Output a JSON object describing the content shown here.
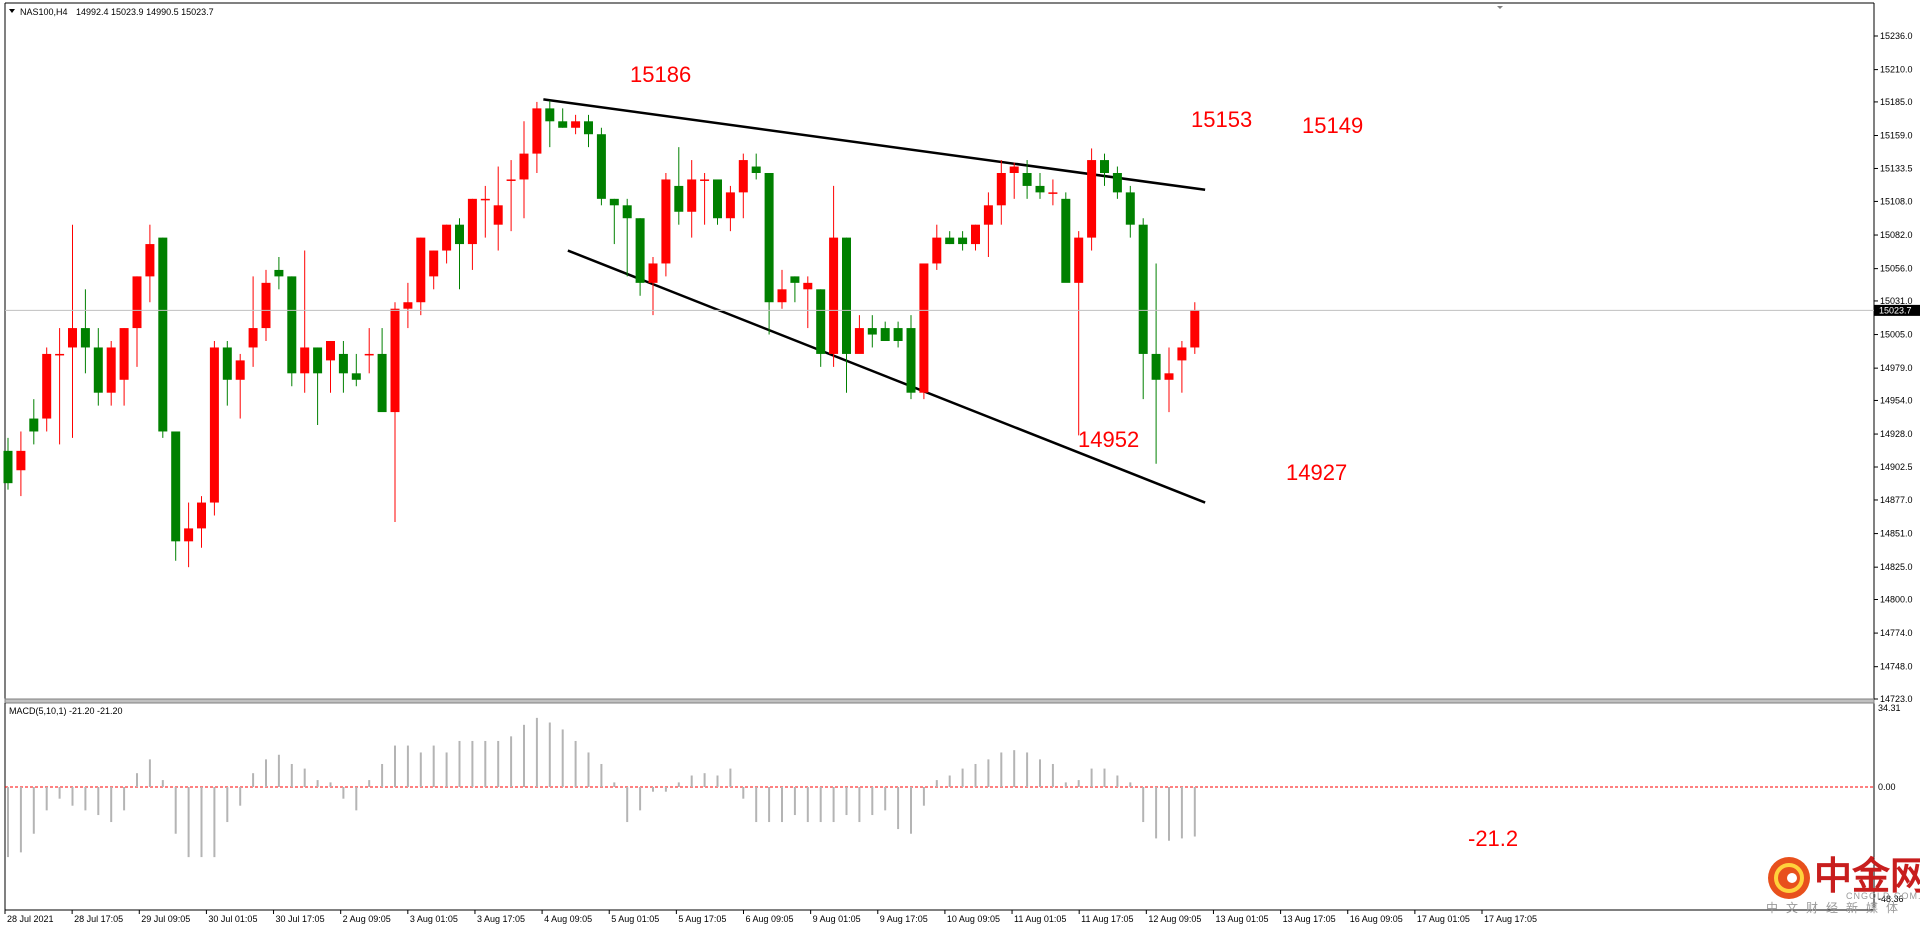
{
  "header": {
    "symbol": "NAS100,H4",
    "ohlc": "14992.4 15023.9 14990.5 15023.7"
  },
  "current_price_label": "15023.7",
  "macd": {
    "label": "MACD(5,10,1) -21.20 -21.20",
    "axis_top": "34.31",
    "axis_zero": "0.00",
    "axis_bottom": "-48.36",
    "last_value_annotation": "-21.2"
  },
  "annotations": {
    "a1": "15186",
    "a2": "15153",
    "a3": "15149",
    "a4": "14952",
    "a5": "14927"
  },
  "watermark": {
    "chinese": "中金网",
    "english": "CNGOLD.COM.CN",
    "subtitle": "中文财经新媒体"
  },
  "colors": {
    "bull": "#ff0000",
    "bear": "#008000",
    "trendline": "#000000",
    "zero_line": "#ff0000",
    "macd_bars": "#b4b4b4"
  },
  "chart_data": {
    "type": "candlestick",
    "symbol": "NAS100",
    "timeframe": "H4",
    "price_axis_ticks": [
      15236.0,
      15210.0,
      15185.0,
      15159.0,
      15133.5,
      15108.0,
      15082.0,
      15056.0,
      15031.0,
      15005.0,
      14979.0,
      14954.0,
      14928.0,
      14902.5,
      14877.0,
      14851.0,
      14825.0,
      14800.0,
      14774.0,
      14748.0,
      14723.0
    ],
    "ylim": [
      14723.0,
      15248.0
    ],
    "time_axis_labels": [
      "28 Jul 2021",
      "28 Jul 17:05",
      "29 Jul 09:05",
      "30 Jul 01:05",
      "30 Jul 17:05",
      "2 Aug 09:05",
      "3 Aug 01:05",
      "3 Aug 17:05",
      "4 Aug 09:05",
      "5 Aug 01:05",
      "5 Aug 17:05",
      "6 Aug 09:05",
      "9 Aug 01:05",
      "9 Aug 17:05",
      "10 Aug 09:05",
      "11 Aug 01:05",
      "11 Aug 17:05",
      "12 Aug 09:05",
      "13 Aug 01:05",
      "13 Aug 17:05",
      "16 Aug 09:05",
      "17 Aug 01:05",
      "17 Aug 17:05"
    ],
    "grid": false,
    "candles": [
      [
        14915,
        14925,
        14885,
        14890
      ],
      [
        14900,
        14930,
        14880,
        14915
      ],
      [
        14940,
        14955,
        14920,
        14930
      ],
      [
        14940,
        14995,
        14930,
        14990
      ],
      [
        14990,
        15010,
        14920,
        14990
      ],
      [
        14995,
        15090,
        14925,
        15010
      ],
      [
        15010,
        15040,
        14975,
        14995
      ],
      [
        14995,
        15010,
        14950,
        14960
      ],
      [
        14960,
        15000,
        14950,
        14995
      ],
      [
        14970,
        15010,
        14950,
        15010
      ],
      [
        15010,
        15050,
        14980,
        15050
      ],
      [
        15050,
        15090,
        15030,
        15075
      ],
      [
        15080,
        15080,
        14925,
        14930
      ],
      [
        14930,
        14930,
        14830,
        14845
      ],
      [
        14845,
        14875,
        14825,
        14855
      ],
      [
        14855,
        14880,
        14840,
        14875
      ],
      [
        14875,
        15000,
        14865,
        14995
      ],
      [
        14995,
        15000,
        14950,
        14970
      ],
      [
        14970,
        14990,
        14940,
        14985
      ],
      [
        14995,
        15050,
        14980,
        15010
      ],
      [
        15010,
        15055,
        15000,
        15045
      ],
      [
        15055,
        15065,
        15040,
        15050
      ],
      [
        15050,
        15050,
        14965,
        14975
      ],
      [
        14975,
        15070,
        14960,
        14995
      ],
      [
        14995,
        14995,
        14935,
        14975
      ],
      [
        14985,
        15000,
        14960,
        15000
      ],
      [
        14990,
        15000,
        14960,
        14975
      ],
      [
        14975,
        14990,
        14965,
        14970
      ],
      [
        14990,
        15010,
        14975,
        14990
      ],
      [
        14990,
        15010,
        14950,
        14945
      ],
      [
        14945,
        15030,
        14860,
        15025
      ],
      [
        15025,
        15045,
        15010,
        15030
      ],
      [
        15030,
        15080,
        15020,
        15080
      ],
      [
        15050,
        15070,
        15040,
        15070
      ],
      [
        15070,
        15090,
        15060,
        15090
      ],
      [
        15090,
        15095,
        15040,
        15075
      ],
      [
        15075,
        15110,
        15055,
        15110
      ],
      [
        15110,
        15120,
        15080,
        15110
      ],
      [
        15090,
        15135,
        15070,
        15105
      ],
      [
        15125,
        15140,
        15085,
        15125
      ],
      [
        15125,
        15170,
        15095,
        15145
      ],
      [
        15145,
        15185,
        15130,
        15180
      ],
      [
        15180,
        15186,
        15150,
        15170
      ],
      [
        15170,
        15180,
        15165,
        15165
      ],
      [
        15165,
        15175,
        15160,
        15170
      ],
      [
        15170,
        15175,
        15150,
        15160
      ],
      [
        15160,
        15165,
        15105,
        15110
      ],
      [
        15110,
        15110,
        15075,
        15105
      ],
      [
        15105,
        15110,
        15050,
        15095
      ],
      [
        15095,
        15095,
        15035,
        15045
      ],
      [
        15045,
        15065,
        15020,
        15060
      ],
      [
        15060,
        15130,
        15050,
        15125
      ],
      [
        15120,
        15150,
        15090,
        15100
      ],
      [
        15100,
        15140,
        15080,
        15125
      ],
      [
        15125,
        15130,
        15090,
        15125
      ],
      [
        15125,
        15125,
        15090,
        15095
      ],
      [
        15095,
        15120,
        15085,
        15115
      ],
      [
        15115,
        15145,
        15095,
        15140
      ],
      [
        15135,
        15145,
        15125,
        15130
      ],
      [
        15130,
        15130,
        15005,
        15030
      ],
      [
        15030,
        15055,
        15025,
        15040
      ],
      [
        15050,
        15050,
        15030,
        15045
      ],
      [
        15040,
        15050,
        15010,
        15045
      ],
      [
        15040,
        15040,
        14980,
        14990
      ],
      [
        14990,
        15120,
        14980,
        15080
      ],
      [
        15080,
        15080,
        14960,
        14990
      ],
      [
        14990,
        15020,
        14995,
        15010
      ],
      [
        15010,
        15020,
        14995,
        15005
      ],
      [
        15010,
        15015,
        15000,
        15000
      ],
      [
        15010,
        15015,
        14995,
        15000
      ],
      [
        15010,
        15020,
        14955,
        14960
      ],
      [
        14960,
        15060,
        14955,
        15060
      ],
      [
        15060,
        15090,
        15055,
        15080
      ],
      [
        15080,
        15085,
        15075,
        15075
      ],
      [
        15080,
        15085,
        15070,
        15075
      ],
      [
        15075,
        15090,
        15070,
        15090
      ],
      [
        15090,
        15115,
        15065,
        15105
      ],
      [
        15105,
        15140,
        15090,
        15130
      ],
      [
        15130,
        15138,
        15110,
        15135
      ],
      [
        15130,
        15140,
        15110,
        15120
      ],
      [
        15120,
        15130,
        15110,
        15115
      ],
      [
        15115,
        15125,
        15105,
        15115
      ],
      [
        15110,
        15115,
        15050,
        15045
      ],
      [
        15045,
        15085,
        14927,
        15080
      ],
      [
        15080,
        15149,
        15070,
        15140
      ],
      [
        15140,
        15145,
        15120,
        15130
      ],
      [
        15130,
        15135,
        15110,
        15115
      ],
      [
        15115,
        15120,
        15080,
        15090
      ],
      [
        15090,
        15095,
        14955,
        14990
      ],
      [
        14990,
        15060,
        14905,
        14970
      ],
      [
        14970,
        14995,
        14945,
        14975
      ],
      [
        14985,
        15000,
        14960,
        14995
      ],
      [
        14995,
        15030,
        14990,
        15024
      ]
    ],
    "trendlines": [
      {
        "from": [
          41.5,
          15187
        ],
        "to": [
          92.8,
          15117
        ]
      },
      {
        "from": [
          43.4,
          15070
        ],
        "to": [
          92.8,
          14875
        ]
      }
    ],
    "macd_values": [
      -30,
      -28,
      -20,
      -10,
      -5,
      -8,
      -10,
      -12,
      -15,
      -10,
      6,
      12,
      3,
      -20,
      -30,
      -30,
      -30,
      -15,
      -8,
      6,
      12,
      14,
      10,
      8,
      3,
      2,
      -5,
      -10,
      3,
      10,
      18,
      18,
      15,
      18,
      15,
      20,
      20,
      20,
      20,
      22,
      27,
      30,
      28,
      25,
      20,
      15,
      10,
      2,
      -15,
      -10,
      -2,
      -2,
      2,
      5,
      6,
      5,
      8,
      -5,
      -15,
      -15,
      -15,
      -12,
      -15,
      -15,
      -15,
      -12,
      -15,
      -12,
      -10,
      -18,
      -20,
      -8,
      3,
      5,
      8,
      10,
      12,
      15,
      16,
      15,
      12,
      10,
      2,
      3,
      8,
      8,
      5,
      2,
      -15,
      -22,
      -23,
      -22,
      -21.2
    ]
  }
}
